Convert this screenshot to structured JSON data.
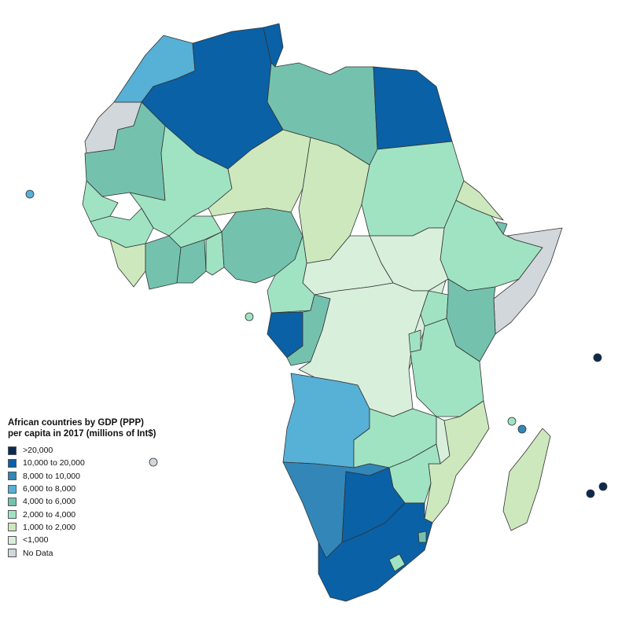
{
  "legend": {
    "title": "African countries by GDP (PPP) per capita in 2017 (millions of Int$)",
    "items": [
      {
        "label": ">20,000",
        "color": "#0b2a52"
      },
      {
        "label": "10,000 to 20,000",
        "color": "#0a61a6"
      },
      {
        "label": "8,000 to 10,000",
        "color": "#3387b8"
      },
      {
        "label": "6,000 to 8,000",
        "color": "#57b0d6"
      },
      {
        "label": "4,000 to 6,000",
        "color": "#74c2ae"
      },
      {
        "label": "2,000 to 4,000",
        "color": "#a0e3c3"
      },
      {
        "label": "1,000 to 2,000",
        "color": "#cde8bd"
      },
      {
        "label": "<1,000",
        "color": "#d8efdc"
      },
      {
        "label": "No Data",
        "color": "#d1d7da"
      }
    ]
  }
}
